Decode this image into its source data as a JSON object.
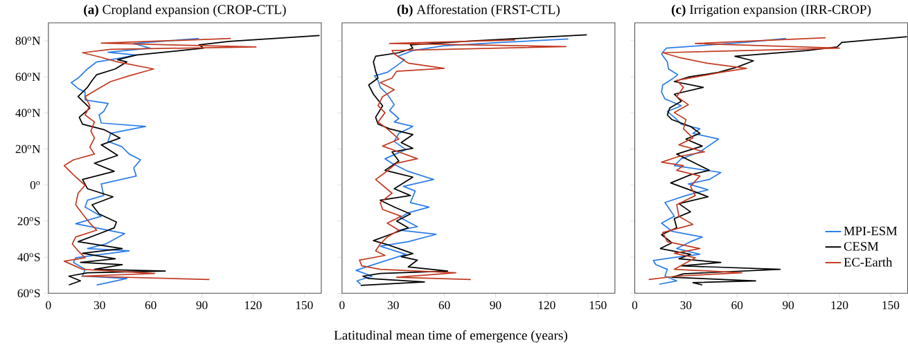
{
  "chart_data": [
    {
      "type": "line",
      "title": "**(a)** Cropland expansion (CROP-CTL)",
      "xlim": [
        0,
        160
      ],
      "ylim": [
        -60,
        90
      ],
      "xticks": [
        0,
        30,
        60,
        90,
        120,
        150
      ],
      "yticks": [
        {
          "value": -60,
          "label": "60$^{o}$S"
        },
        {
          "value": -40,
          "label": "40$^{o}$S"
        },
        {
          "value": -20,
          "label": "20$^{o}$S"
        },
        {
          "value": 0,
          "label": "0$^{o}$"
        },
        {
          "value": 20,
          "label": "20$^{o}$N"
        },
        {
          "value": 40,
          "label": "40$^{o}$N"
        },
        {
          "value": 60,
          "label": "60$^{o}$N"
        },
        {
          "value": 80,
          "label": "80$^{o}$N"
        }
      ],
      "series": [
        {
          "color": "#2b7de9",
          "x": [
            28.3,
            46,
            20,
            21.5,
            14.7,
            16,
            47.4,
            22.9,
            33.8,
            44.7,
            16,
            31,
            21.5,
            22.9,
            32.4,
            31,
            51.5,
            50,
            54,
            47.4,
            43,
            35,
            36.5,
            57,
            31,
            29.7,
            32.4,
            35,
            21.5,
            21.5,
            17.4,
            13.4,
            17.4,
            22.9,
            28.3,
            40.6,
            51.5,
            35,
            59.7,
            50,
            88.3
          ],
          "values": [
            -55.4,
            -51.8,
            -50.5,
            -46.7,
            -42.9,
            -40.3,
            -36.5,
            -35.2,
            -32.6,
            -26.9,
            -21.4,
            -17.3,
            -12.2,
            -8.4,
            -5.8,
            0.6,
            5.0,
            9.5,
            14.0,
            17.2,
            21.3,
            24.2,
            28.7,
            32.5,
            34.4,
            38.9,
            40.8,
            45.3,
            47.2,
            51.6,
            53.6,
            56.8,
            59.3,
            64.4,
            68.3,
            70.2,
            72.1,
            73.6,
            75.9,
            78.5,
            81.3
          ]
        },
        {
          "color": "#000000",
          "x": [
            12,
            18.8,
            12,
            22.9,
            68.5,
            27,
            43.3,
            18.8,
            39.2,
            20,
            43.3,
            17.4,
            28.3,
            38.6,
            39.9,
            29.7,
            25.6,
            37.9,
            22.9,
            20,
            38.6,
            27,
            40.6,
            31,
            42,
            33,
            20,
            18.1,
            24.3,
            17.4,
            22.9,
            25.6,
            28.3,
            39.2,
            46,
            40.6,
            51.5,
            91,
            88.3,
            106,
            159
          ],
          "values": [
            -55.4,
            -53.1,
            -50.5,
            -48.6,
            -47.7,
            -46.7,
            -44.1,
            -42.9,
            -40.9,
            -37.8,
            -35.2,
            -31.4,
            -27.5,
            -23.7,
            -20.5,
            -16.0,
            -10.9,
            -6.5,
            -2.0,
            3.1,
            7.6,
            12.1,
            16.5,
            22.3,
            26.1,
            30.6,
            33.8,
            37.6,
            42.7,
            49.1,
            54.2,
            58.0,
            61.2,
            64.4,
            68.3,
            69.5,
            72.1,
            75.9,
            77.8,
            79.7,
            82.9
          ]
        },
        {
          "color": "#c33a22",
          "x": [
            94.4,
            19.5,
            62.4,
            20,
            9.3,
            21.5,
            17.4,
            14,
            16,
            28.3,
            24.3,
            20,
            16,
            17.4,
            21.5,
            14.7,
            9.3,
            14.7,
            27,
            24.3,
            27,
            24.9,
            27,
            21.5,
            24.3,
            21.5,
            28.3,
            36.5,
            47.4,
            61.7,
            40.6,
            31,
            20,
            36.5,
            121.7,
            31,
            107
          ],
          "values": [
            -52.4,
            -50.5,
            -49.0,
            -46.7,
            -42.2,
            -40.3,
            -36.5,
            -32.6,
            -28.8,
            -25.0,
            -21.1,
            -16.0,
            -10.9,
            -4.5,
            -0.1,
            5.7,
            10.8,
            14.0,
            17.2,
            21.0,
            26.1,
            29.9,
            35.0,
            38.9,
            44.0,
            49.1,
            52.9,
            57.4,
            60.6,
            64.4,
            68.3,
            70.8,
            73.4,
            75.3,
            76.6,
            78.7,
            81.3
          ]
        }
      ]
    },
    {
      "type": "line",
      "title": "**(b)** Afforestation (FRST-CTL)",
      "xlabel": "Latitudinal mean time of emergence (years)",
      "xlim": [
        0,
        160
      ],
      "ylim": [
        -60,
        90
      ],
      "tick_labels": "x",
      "xticks": [
        0,
        30,
        60,
        90,
        120,
        150
      ],
      "yticks": [
        {
          "value": -60,
          "label": null
        },
        {
          "value": -40,
          "label": null
        },
        {
          "value": -20,
          "label": null
        },
        {
          "value": 0,
          "label": null
        },
        {
          "value": 20,
          "label": null
        },
        {
          "value": 40,
          "label": null
        },
        {
          "value": 60,
          "label": null
        },
        {
          "value": 80,
          "label": null
        }
      ],
      "series": [
        {
          "color": "#2b7de9",
          "x": [
            10.9,
            8.8,
            17.7,
            8.2,
            22.4,
            37.4,
            22.4,
            38.8,
            55.1,
            33.3,
            44.2,
            34,
            38.8,
            51,
            40.1,
            42.9,
            36,
            53.7,
            38.8,
            29.3,
            25.2,
            37.4,
            30.6,
            33.3,
            41.5,
            30.6,
            33.3,
            27.9,
            30.6,
            26.5,
            22.4,
            21.1,
            19,
            26.5,
            31.3,
            36.7,
            32.7,
            41.5,
            59.2,
            93.2,
            132.7
          ],
          "values": [
            -55.0,
            -53.1,
            -50.5,
            -47.3,
            -42.9,
            -38.4,
            -33.9,
            -31.4,
            -27.3,
            -25.0,
            -23.1,
            -18.0,
            -15.4,
            -12.2,
            -9.7,
            -3.3,
            -0.7,
            3.1,
            7.6,
            12.1,
            14.6,
            19.7,
            24.2,
            28.7,
            32.5,
            35.0,
            36.9,
            41.4,
            44.6,
            50.4,
            54.2,
            58.0,
            60.6,
            62.5,
            65.7,
            69.5,
            71.4,
            74.6,
            77.2,
            79.1,
            81.0
          ]
        },
        {
          "color": "#000000",
          "x": [
            10.9,
            48.3,
            15.6,
            12.2,
            22.4,
            61.9,
            38.8,
            44.2,
            34.7,
            41.5,
            33.3,
            25.2,
            18.4,
            27.9,
            38.8,
            32,
            40.1,
            30.6,
            22.4,
            40.1,
            30.6,
            41.5,
            25.2,
            33.3,
            29.3,
            41.5,
            34.7,
            41.5,
            27.9,
            21.1,
            19.7,
            23.8,
            18.4,
            15.6,
            21.1,
            19.7,
            18.4,
            19.7,
            33.3,
            41.5,
            40.1,
            76.9,
            143.5
          ],
          "values": [
            -55.6,
            -53.7,
            -51.8,
            -50.5,
            -49.0,
            -47.7,
            -45.4,
            -41.6,
            -39.7,
            -38.0,
            -35.2,
            -32.6,
            -30.8,
            -27.5,
            -23.7,
            -19.9,
            -16.0,
            -12.2,
            -8.4,
            -5.8,
            -2.0,
            4.4,
            8.2,
            13.3,
            18.4,
            20.4,
            23.6,
            28.0,
            31.2,
            33.8,
            37.6,
            44.0,
            50.4,
            55.5,
            59.3,
            63.1,
            68.3,
            71.4,
            73.4,
            75.9,
            77.8,
            80.0,
            83.3
          ]
        },
        {
          "color": "#c33a22",
          "x": [
            75.5,
            32,
            66.7,
            22.4,
            11.6,
            10.2,
            25.2,
            19.7,
            22.4,
            26.5,
            33.3,
            26.5,
            34.7,
            23.8,
            22.4,
            29.3,
            19.7,
            25.2,
            32,
            44.2,
            33.3,
            23.8,
            33.3,
            26.5,
            21.1,
            25.2,
            21.1,
            23.8,
            30.6,
            22.4,
            29.3,
            32,
            59.9,
            38.8,
            34.7,
            30.6,
            29.3,
            131.3,
            27.9,
            101.4
          ],
          "values": [
            -52.4,
            -51.1,
            -48.6,
            -46.7,
            -44.8,
            -41.6,
            -39.0,
            -36.5,
            -32.6,
            -28.8,
            -25.0,
            -21.1,
            -17.3,
            -13.5,
            -9.7,
            -4.5,
            3.1,
            6.9,
            12.1,
            14.6,
            18.4,
            21.6,
            25.5,
            31.2,
            35.0,
            40.1,
            44.0,
            49.1,
            52.9,
            56.8,
            59.3,
            63.1,
            64.7,
            67.6,
            70.2,
            72.7,
            74.6,
            76.8,
            78.5,
            80.4
          ]
        }
      ]
    },
    {
      "type": "line",
      "title": "**(c)** Irrigation expansion (IRR-CROP)",
      "xlim": [
        0,
        160
      ],
      "ylim": [
        -60,
        90
      ],
      "tick_labels": "x",
      "legend": "bottom right",
      "xticks": [
        0,
        30,
        60,
        90,
        120,
        150
      ],
      "yticks": [
        {
          "value": -60,
          "label": null
        },
        {
          "value": -40,
          "label": null
        },
        {
          "value": -20,
          "label": null
        },
        {
          "value": 0,
          "label": null
        },
        {
          "value": 20,
          "label": null
        },
        {
          "value": 40,
          "label": null
        },
        {
          "value": 60,
          "label": null
        },
        {
          "value": 80,
          "label": null
        }
      ],
      "series": [
        {
          "name": "MPI-ESM",
          "color": "#2b7de9",
          "x": [
            14.3,
            24.6,
            17.7,
            19.1,
            12.3,
            10.9,
            21.8,
            38.2,
            24.6,
            32.7,
            39.6,
            21.8,
            15.7,
            23.2,
            20.5,
            17.7,
            30,
            43,
            31.4,
            43.7,
            50.5,
            23.2,
            27.3,
            38.2,
            49.1,
            34.1,
            38.2,
            27.3,
            23.2,
            19.1,
            27.3,
            17.7,
            15.7,
            16.4,
            21.8,
            25.2,
            19.8,
            19.1,
            15.7,
            18.4,
            64.1,
            88.7
          ],
          "values": [
            -55.0,
            -53.1,
            -50.5,
            -46.7,
            -44.1,
            -41.8,
            -40.3,
            -38.4,
            -35.2,
            -31.4,
            -28.8,
            -25.6,
            -21.1,
            -17.3,
            -13.5,
            -9.7,
            -5.8,
            -2.6,
            0.6,
            3.1,
            7.0,
            10.8,
            14.6,
            18.4,
            25.5,
            28.7,
            31.2,
            33.8,
            37.6,
            40.8,
            44.0,
            47.8,
            51.6,
            55.5,
            58.7,
            61.2,
            64.4,
            68.3,
            72.7,
            75.9,
            79.1,
            81.3
          ]
        },
        {
          "name": "CESM",
          "color": "#000000",
          "x": [
            39.6,
            34.1,
            70.9,
            21.8,
            28.6,
            85.3,
            27.3,
            50.5,
            25.9,
            32.7,
            15,
            21.8,
            15.7,
            24.6,
            23.2,
            32.7,
            25.9,
            43,
            34.1,
            21.1,
            32.7,
            43.7,
            35.5,
            24.6,
            39.6,
            30,
            38.2,
            32.7,
            21.8,
            19.1,
            20.5,
            27.3,
            23.2,
            40.2,
            23.2,
            31.4,
            49.1,
            60,
            69.6,
            58.7,
            101,
            118.7,
            121.4,
            159.6
          ],
          "values": [
            -55.4,
            -54.1,
            -53.1,
            -51.1,
            -49.2,
            -46.7,
            -44.8,
            -42.9,
            -40.9,
            -38.4,
            -35.2,
            -32.0,
            -27.5,
            -23.7,
            -18.6,
            -14.8,
            -10.3,
            -6.5,
            -3.3,
            1.2,
            5.7,
            8.2,
            12.1,
            17.2,
            21.6,
            25.5,
            28.7,
            32.5,
            36.3,
            38.9,
            42.7,
            46.5,
            50.4,
            54.2,
            57.4,
            59.9,
            62.5,
            65.4,
            68.9,
            71.4,
            74.6,
            76.6,
            79.1,
            82.3
          ]
        },
        {
          "name": "EC-Earth",
          "color": "#c33a22",
          "x": [
            8.2,
            24.6,
            62.8,
            23.2,
            35.5,
            23.2,
            38.2,
            19.1,
            16.4,
            34.1,
            25.9,
            24.6,
            35.5,
            32.7,
            38.2,
            24.6,
            28.6,
            15.7,
            25.9,
            40.9,
            25.9,
            34.1,
            28.6,
            30,
            23.2,
            31.4,
            24.6,
            28.6,
            24.6,
            50.5,
            65.5,
            42.3,
            25.9,
            16.4,
            120,
            35.5,
            111.9
          ],
          "values": [
            -52.4,
            -50.5,
            -48.6,
            -46.7,
            -40.3,
            -37.8,
            -35.2,
            -31.4,
            -26.3,
            -21.8,
            -17.3,
            -10.9,
            -5.8,
            -0.7,
            5.0,
            8.2,
            10.8,
            12.7,
            15.9,
            18.4,
            22.3,
            26.1,
            31.2,
            36.3,
            40.2,
            44.6,
            49.1,
            54.2,
            58.0,
            62.5,
            64.7,
            67.6,
            70.8,
            73.4,
            75.9,
            78.5,
            81.7
          ]
        }
      ]
    }
  ]
}
